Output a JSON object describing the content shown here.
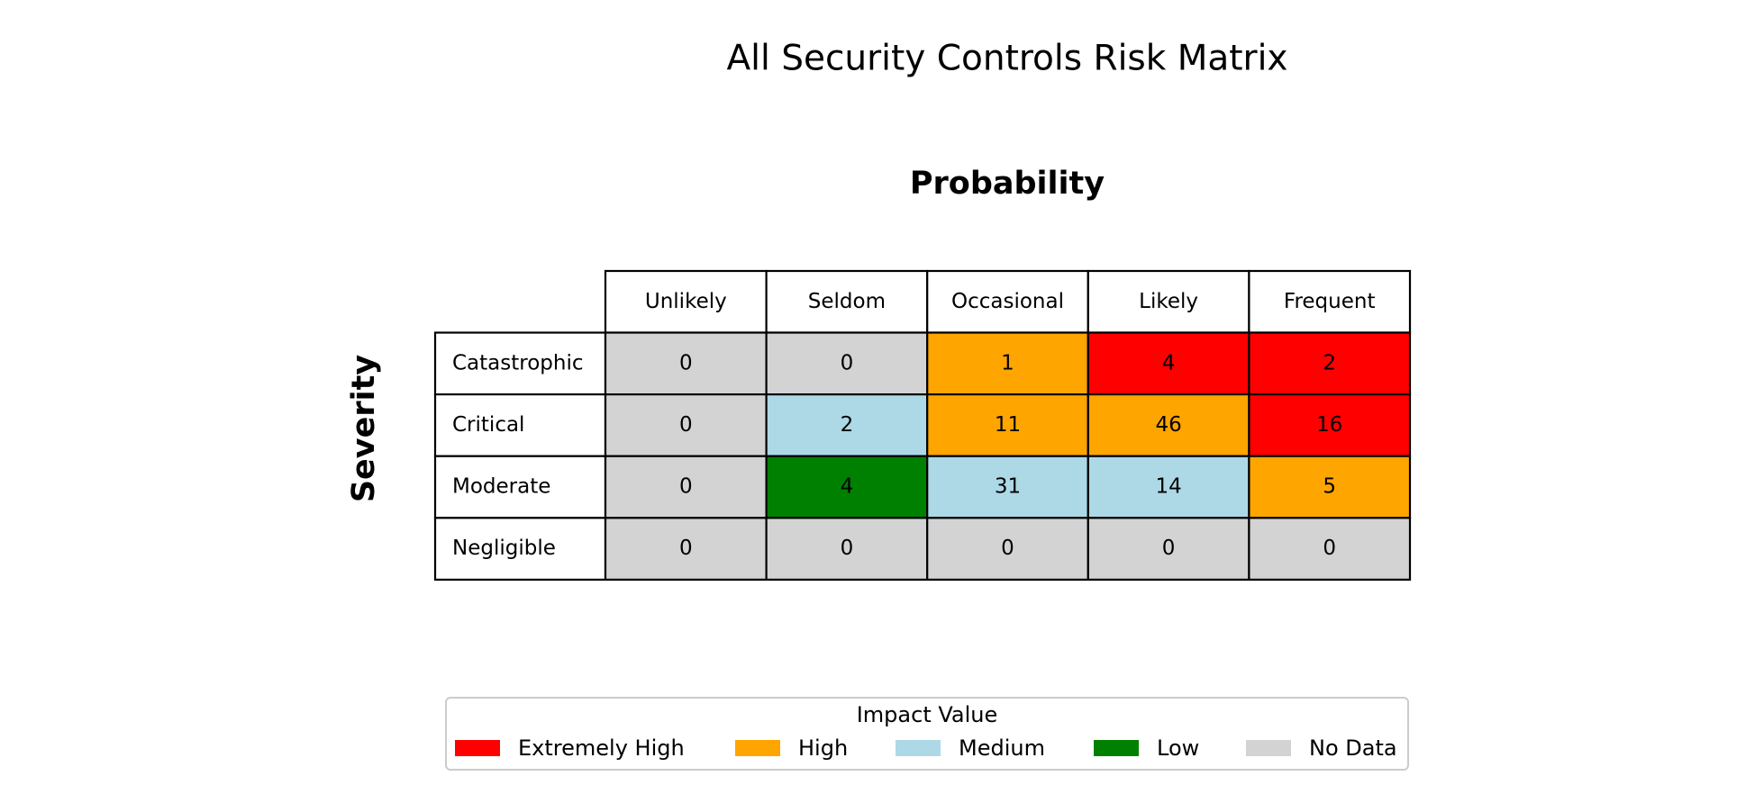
{
  "chart_data": {
    "type": "heatmap",
    "title": "All Security Controls Risk Matrix",
    "xlabel": "Probability",
    "ylabel": "Severity",
    "x_categories": [
      "Unlikely",
      "Seldom",
      "Occasional",
      "Likely",
      "Frequent"
    ],
    "y_categories": [
      "Catastrophic",
      "Critical",
      "Moderate",
      "Negligible"
    ],
    "values": [
      [
        0,
        0,
        1,
        4,
        2
      ],
      [
        0,
        2,
        11,
        46,
        16
      ],
      [
        0,
        4,
        31,
        14,
        5
      ],
      [
        0,
        0,
        0,
        0,
        0
      ]
    ],
    "impact": [
      [
        "No Data",
        "No Data",
        "High",
        "Extremely High",
        "Extremely High"
      ],
      [
        "No Data",
        "Medium",
        "High",
        "High",
        "Extremely High"
      ],
      [
        "No Data",
        "Low",
        "Medium",
        "Medium",
        "High"
      ],
      [
        "No Data",
        "No Data",
        "No Data",
        "No Data",
        "No Data"
      ]
    ],
    "legend": {
      "title": "Impact Value",
      "placement": "bottom-center",
      "items": [
        {
          "label": "Extremely High",
          "color": "#ff0000"
        },
        {
          "label": "High",
          "color": "#ffa500"
        },
        {
          "label": "Medium",
          "color": "#add8e6"
        },
        {
          "label": "Low",
          "color": "#008000"
        },
        {
          "label": "No Data",
          "color": "#d3d3d3"
        }
      ]
    }
  }
}
